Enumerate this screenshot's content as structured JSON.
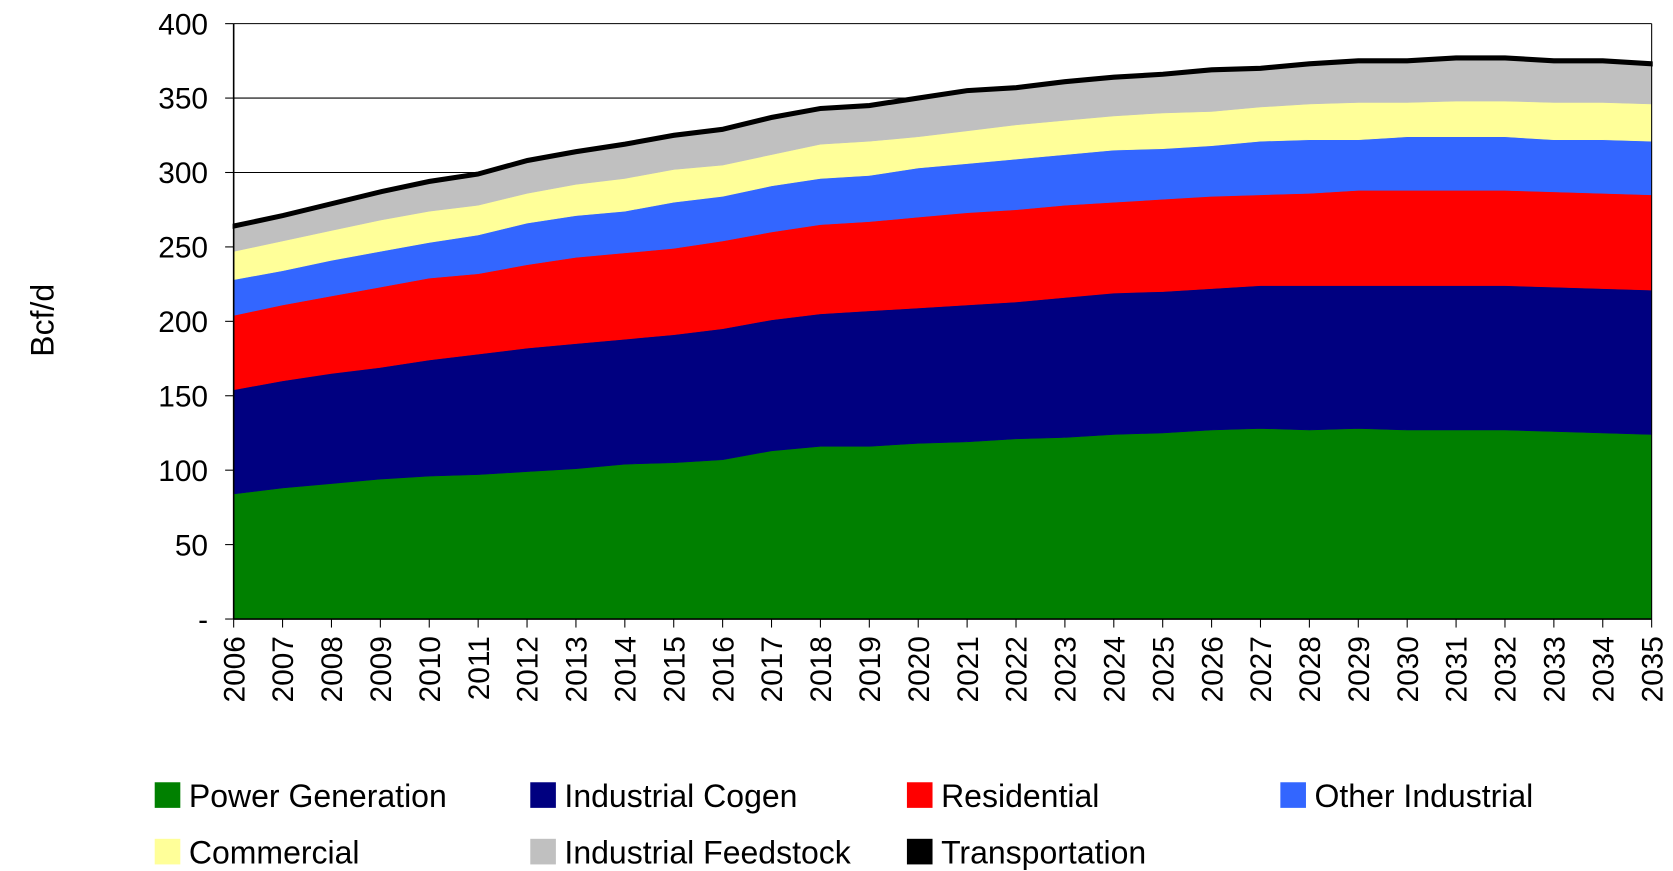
{
  "chart_data": {
    "type": "stacked_area",
    "y_label": "Bcf/d",
    "categories": [
      "2006",
      "2007",
      "2008",
      "2009",
      "2010",
      "2011",
      "2012",
      "2013",
      "2014",
      "2015",
      "2016",
      "2017",
      "2018",
      "2019",
      "2020",
      "2021",
      "2022",
      "2023",
      "2024",
      "2025",
      "2026",
      "2027",
      "2028",
      "2029",
      "2030",
      "2031",
      "2032",
      "2033",
      "2034",
      "2035"
    ],
    "series": [
      {
        "name": "Power Generation",
        "color": "#008000",
        "values": [
          84,
          88,
          91,
          94,
          96,
          97,
          99,
          101,
          104,
          105,
          107,
          113,
          116,
          116,
          118,
          119,
          121,
          122,
          124,
          125,
          127,
          128,
          127,
          128,
          127,
          127,
          127,
          126,
          125,
          124
        ]
      },
      {
        "name": "Industrial Cogen",
        "color": "#000080",
        "values": [
          70,
          72,
          74,
          75,
          78,
          81,
          83,
          84,
          84,
          86,
          88,
          88,
          89,
          91,
          91,
          92,
          92,
          94,
          95,
          95,
          95,
          96,
          97,
          96,
          97,
          97,
          97,
          97,
          97,
          97
        ]
      },
      {
        "name": "Residential",
        "color": "#ff0000",
        "values": [
          50,
          51,
          52,
          54,
          55,
          54,
          56,
          58,
          58,
          58,
          59,
          59,
          60,
          60,
          61,
          62,
          62,
          62,
          61,
          62,
          62,
          61,
          62,
          64,
          64,
          64,
          64,
          64,
          64,
          64
        ]
      },
      {
        "name": "Other Industrial",
        "color": "#3366ff",
        "values": [
          24,
          23,
          24,
          24,
          24,
          26,
          28,
          28,
          28,
          31,
          30,
          31,
          31,
          31,
          33,
          33,
          34,
          34,
          35,
          34,
          34,
          36,
          36,
          34,
          36,
          36,
          36,
          35,
          36,
          36
        ]
      },
      {
        "name": "Commercial",
        "color": "#ffff99",
        "values": [
          19,
          20,
          20,
          21,
          21,
          20,
          20,
          21,
          22,
          22,
          21,
          21,
          23,
          23,
          21,
          22,
          23,
          23,
          23,
          24,
          23,
          23,
          24,
          25,
          23,
          24,
          24,
          25,
          25,
          25
        ]
      },
      {
        "name": "Industrial Feedstock",
        "color": "#c0c0c0",
        "values": [
          16,
          16,
          17,
          18,
          19,
          20,
          21,
          21,
          22,
          22,
          23,
          24,
          23,
          23,
          25,
          26,
          24,
          25,
          25,
          25,
          27,
          25,
          26,
          27,
          27,
          28,
          28,
          27,
          27,
          26
        ]
      },
      {
        "name": "Transportation",
        "color": "#000000",
        "values": [
          2,
          2,
          2,
          2,
          2,
          2,
          2,
          2,
          2,
          2,
          2,
          2,
          2,
          2,
          2,
          2,
          2,
          2,
          2,
          2,
          2,
          2,
          2,
          2,
          2,
          2,
          2,
          2,
          2,
          2
        ]
      }
    ],
    "ylim": [
      0,
      400
    ],
    "yticks": [
      {
        "value": 0,
        "label": "-"
      },
      50,
      100,
      150,
      200,
      250,
      300,
      350,
      400
    ],
    "grid": true,
    "legend": "bottom"
  }
}
